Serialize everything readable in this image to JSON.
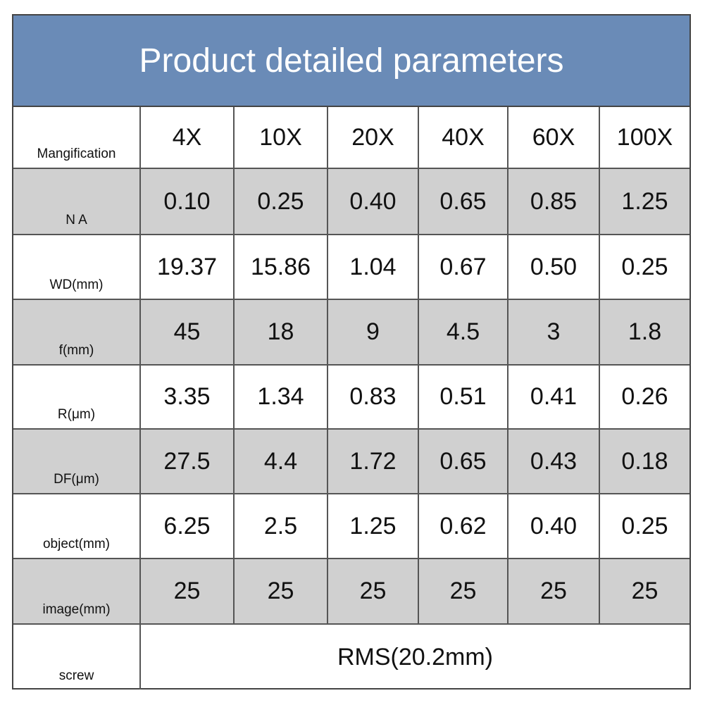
{
  "title": "Product detailed parameters",
  "header": {
    "label": "Mangification",
    "columns": [
      "4X",
      "10X",
      "20X",
      "40X",
      "60X",
      "100X"
    ]
  },
  "rows": [
    {
      "label": "N A",
      "cells": [
        "0.10",
        "0.25",
        "0.40",
        "0.65",
        "0.85",
        "1.25"
      ]
    },
    {
      "label": "WD(mm)",
      "cells": [
        "19.37",
        "15.86",
        "1.04",
        "0.67",
        "0.50",
        "0.25"
      ]
    },
    {
      "label": "f(mm)",
      "cells": [
        "45",
        "18",
        "9",
        "4.5",
        "3",
        "1.8"
      ]
    },
    {
      "label": "R(μm)",
      "cells": [
        "3.35",
        "1.34",
        "0.83",
        "0.51",
        "0.41",
        "0.26"
      ]
    },
    {
      "label": "DF(μm)",
      "cells": [
        "27.5",
        "4.4",
        "1.72",
        "0.65",
        "0.43",
        "0.18"
      ]
    },
    {
      "label": "object(mm)",
      "cells": [
        "6.25",
        "2.5",
        "1.25",
        "0.62",
        "0.40",
        "0.25"
      ]
    },
    {
      "label": "image(mm)",
      "cells": [
        "25",
        "25",
        "25",
        "25",
        "25",
        "25"
      ]
    }
  ],
  "screw": {
    "label": "screw",
    "value": "RMS(20.2mm)"
  }
}
